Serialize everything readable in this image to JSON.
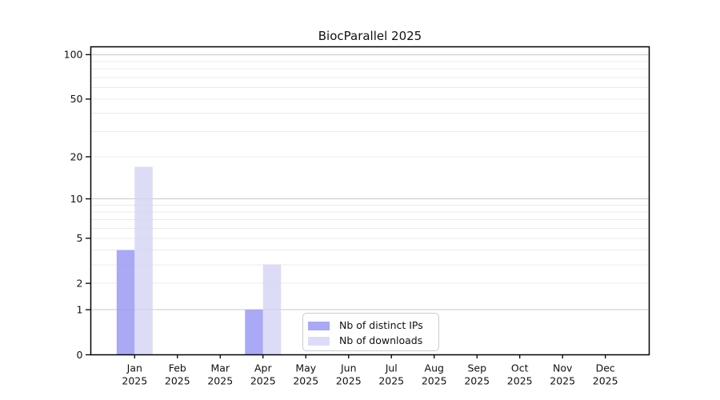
{
  "chart_data": {
    "type": "bar",
    "title": "BiocParallel 2025",
    "categories": [
      "Jan 2025",
      "Feb 2025",
      "Mar 2025",
      "Apr 2025",
      "May 2025",
      "Jun 2025",
      "Jul 2025",
      "Aug 2025",
      "Sep 2025",
      "Oct 2025",
      "Nov 2025",
      "Dec 2025"
    ],
    "x_tick_line1": [
      "Jan",
      "Feb",
      "Mar",
      "Apr",
      "May",
      "Jun",
      "Jul",
      "Aug",
      "Sep",
      "Oct",
      "Nov",
      "Dec"
    ],
    "x_tick_line2": "2025",
    "series": [
      {
        "name": "Nb of distinct IPs",
        "color": "#9494f4",
        "values": [
          4,
          0,
          0,
          1,
          0,
          0,
          0,
          0,
          0,
          0,
          0,
          0
        ]
      },
      {
        "name": "Nb of downloads",
        "color": "#d3d3f5",
        "values": [
          17,
          0,
          0,
          3,
          0,
          0,
          0,
          0,
          0,
          0,
          0,
          0
        ]
      }
    ],
    "bar_opacity": 0.8,
    "xlabel": "",
    "ylabel": "",
    "y_scale": "log1p",
    "y_ticks": [
      0,
      1,
      2,
      5,
      10,
      20,
      50,
      100
    ],
    "ylim": [
      0,
      114
    ],
    "major_gridlines": [
      1,
      10,
      100
    ],
    "minor_gridlines": [
      2,
      3,
      4,
      5,
      6,
      7,
      8,
      9,
      20,
      30,
      40,
      50,
      60,
      70,
      80,
      90
    ],
    "grid": "horizontal",
    "legend_position": "inside-bottom-center"
  },
  "colors": {
    "bar_ips_apparent": "#a9a9f5",
    "bar_downloads_apparent": "#dcdcf7",
    "grid_major": "#c9c9c9",
    "grid_minor": "#ebebeb",
    "axis": "#000000",
    "text": "#111111",
    "legend_border": "#cccccc",
    "background": "#ffffff"
  }
}
